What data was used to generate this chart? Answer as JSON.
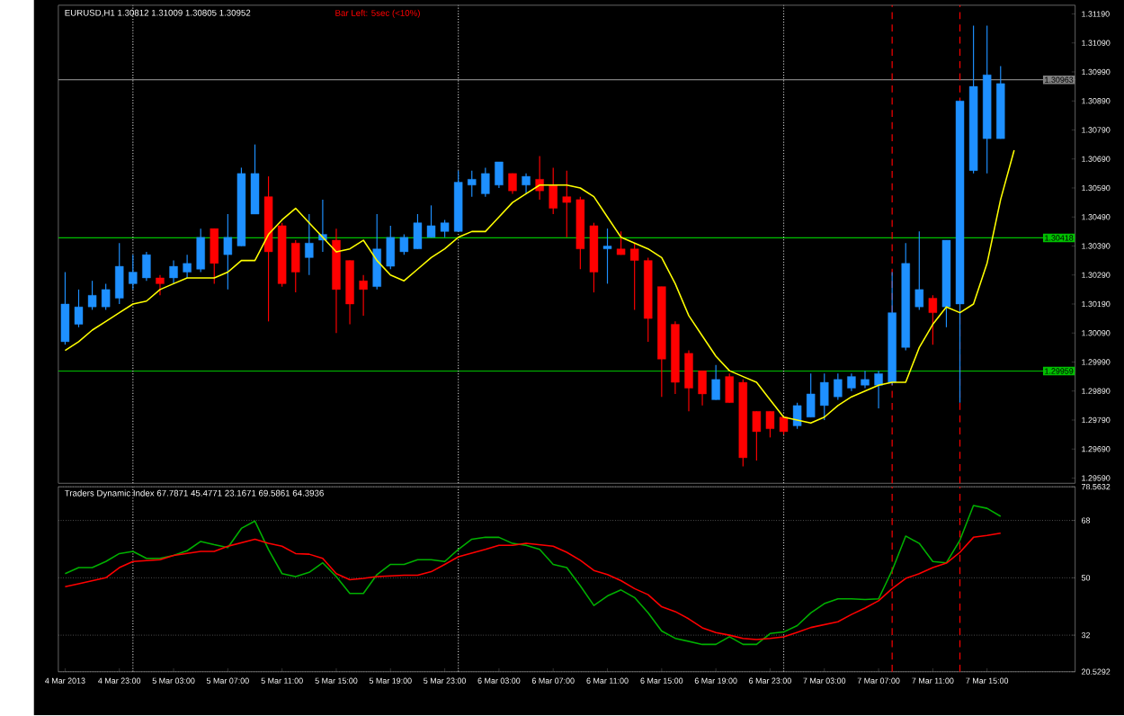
{
  "chart_data": [
    {
      "type": "candlestick",
      "title": "EURUSD,H1 1.30812 1.31009 1.30805 1.30952",
      "annotations": [
        "Bar Left: 5sec (<10%)"
      ],
      "x": [
        "2013-03-04T19:00",
        "2013-03-04T20:00",
        "2013-03-04T21:00",
        "2013-03-04T22:00",
        "2013-03-04T23:00",
        "2013-03-05T00:00",
        "2013-03-05T01:00",
        "2013-03-05T02:00",
        "2013-03-05T03:00",
        "2013-03-05T04:00",
        "2013-03-05T05:00",
        "2013-03-05T06:00",
        "2013-03-05T07:00",
        "2013-03-05T08:00",
        "2013-03-05T09:00",
        "2013-03-05T10:00",
        "2013-03-05T11:00",
        "2013-03-05T12:00",
        "2013-03-05T13:00",
        "2013-03-05T14:00",
        "2013-03-05T15:00",
        "2013-03-05T16:00",
        "2013-03-05T17:00",
        "2013-03-05T18:00",
        "2013-03-05T19:00",
        "2013-03-05T20:00",
        "2013-03-05T21:00",
        "2013-03-05T22:00",
        "2013-03-05T23:00",
        "2013-03-06T00:00",
        "2013-03-06T01:00",
        "2013-03-06T02:00",
        "2013-03-06T03:00",
        "2013-03-06T04:00",
        "2013-03-06T05:00",
        "2013-03-06T06:00",
        "2013-03-06T07:00",
        "2013-03-06T08:00",
        "2013-03-06T09:00",
        "2013-03-06T10:00",
        "2013-03-06T11:00",
        "2013-03-06T12:00",
        "2013-03-06T13:00",
        "2013-03-06T14:00",
        "2013-03-06T15:00",
        "2013-03-06T16:00",
        "2013-03-06T17:00",
        "2013-03-06T18:00",
        "2013-03-06T19:00",
        "2013-03-06T20:00",
        "2013-03-06T21:00",
        "2013-03-06T22:00",
        "2013-03-06T23:00",
        "2013-03-07T00:00",
        "2013-03-07T01:00",
        "2013-03-07T02:00",
        "2013-03-07T03:00",
        "2013-03-07T04:00",
        "2013-03-07T05:00",
        "2013-03-07T06:00",
        "2013-03-07T07:00",
        "2013-03-07T08:00",
        "2013-03-07T09:00",
        "2013-03-07T10:00",
        "2013-03-07T11:00",
        "2013-03-07T12:00",
        "2013-03-07T13:00",
        "2013-03-07T14:00",
        "2013-03-07T15:00",
        "2013-03-07T16:00"
      ],
      "ohlc": [
        [
          1.3006,
          1.303,
          1.3005,
          1.3019
        ],
        [
          1.3012,
          1.3024,
          1.3011,
          1.3018
        ],
        [
          1.3018,
          1.3027,
          1.3017,
          1.3022
        ],
        [
          1.3018,
          1.3026,
          1.3017,
          1.3024
        ],
        [
          1.3021,
          1.304,
          1.3019,
          1.3032
        ],
        [
          1.3026,
          1.3036,
          1.3024,
          1.303
        ],
        [
          1.3028,
          1.3037,
          1.3027,
          1.3036
        ],
        [
          1.3028,
          1.3029,
          1.3022,
          1.3026
        ],
        [
          1.3028,
          1.3034,
          1.3026,
          1.3032
        ],
        [
          1.303,
          1.3036,
          1.3028,
          1.3033
        ],
        [
          1.3031,
          1.3045,
          1.303,
          1.3042
        ],
        [
          1.3045,
          1.3045,
          1.3026,
          1.3033
        ],
        [
          1.3036,
          1.305,
          1.3024,
          1.3042
        ],
        [
          1.3039,
          1.3066,
          1.3039,
          1.3064
        ],
        [
          1.305,
          1.3074,
          1.305,
          1.3064
        ],
        [
          1.3056,
          1.3063,
          1.3013,
          1.3037
        ],
        [
          1.3046,
          1.3047,
          1.3025,
          1.3026
        ],
        [
          1.304,
          1.3041,
          1.3023,
          1.303
        ],
        [
          1.3035,
          1.305,
          1.3029,
          1.304
        ],
        [
          1.3041,
          1.3055,
          1.3037,
          1.3043
        ],
        [
          1.3041,
          1.3045,
          1.3009,
          1.3024
        ],
        [
          1.3034,
          1.3034,
          1.3012,
          1.3019
        ],
        [
          1.3027,
          1.3029,
          1.3015,
          1.3024
        ],
        [
          1.3025,
          1.305,
          1.3024,
          1.3038
        ],
        [
          1.3032,
          1.3046,
          1.3031,
          1.3042
        ],
        [
          1.3037,
          1.3043,
          1.3036,
          1.3042
        ],
        [
          1.3038,
          1.305,
          1.3038,
          1.3047
        ],
        [
          1.3042,
          1.3053,
          1.3042,
          1.3046
        ],
        [
          1.3044,
          1.3048,
          1.3042,
          1.3047
        ],
        [
          1.3044,
          1.3065,
          1.3044,
          1.3061
        ],
        [
          1.306,
          1.3065,
          1.3056,
          1.3062
        ],
        [
          1.3057,
          1.3066,
          1.3056,
          1.3064
        ],
        [
          1.306,
          1.3068,
          1.3059,
          1.3068
        ],
        [
          1.3064,
          1.3064,
          1.3057,
          1.3058
        ],
        [
          1.306,
          1.3064,
          1.3057,
          1.3063
        ],
        [
          1.3062,
          1.307,
          1.3055,
          1.3058
        ],
        [
          1.306,
          1.3066,
          1.305,
          1.3052
        ],
        [
          1.3056,
          1.3065,
          1.3042,
          1.3054
        ],
        [
          1.3055,
          1.3056,
          1.3031,
          1.3038
        ],
        [
          1.3046,
          1.3047,
          1.3023,
          1.303
        ],
        [
          1.3038,
          1.3045,
          1.3026,
          1.3039
        ],
        [
          1.3038,
          1.3044,
          1.3036,
          1.3036
        ],
        [
          1.3038,
          1.304,
          1.3017,
          1.3034
        ],
        [
          1.3034,
          1.3035,
          1.3006,
          1.3014
        ],
        [
          1.3025,
          1.3025,
          1.2987,
          1.3
        ],
        [
          1.3012,
          1.3013,
          1.2988,
          1.2992
        ],
        [
          1.3002,
          1.3003,
          1.2982,
          1.299
        ],
        [
          1.2996,
          1.2996,
          1.2984,
          1.2988
        ],
        [
          1.2986,
          1.2998,
          1.2986,
          1.2993
        ],
        [
          1.2994,
          1.2995,
          1.2985,
          1.2985
        ],
        [
          1.2992,
          1.2993,
          1.2963,
          1.2966
        ],
        [
          1.2982,
          1.2982,
          1.2965,
          1.2975
        ],
        [
          1.2982,
          1.2982,
          1.2973,
          1.2976
        ],
        [
          1.298,
          1.298,
          1.2974,
          1.2975
        ],
        [
          1.2977,
          1.2985,
          1.2976,
          1.2984
        ],
        [
          1.298,
          1.2995,
          1.298,
          1.2988
        ],
        [
          1.2984,
          1.2995,
          1.2979,
          1.2992
        ],
        [
          1.2987,
          1.2995,
          1.2986,
          1.2993
        ],
        [
          1.299,
          1.2995,
          1.2989,
          1.2994
        ],
        [
          1.2991,
          1.2996,
          1.299,
          1.2993
        ],
        [
          1.2991,
          1.2996,
          1.2983,
          1.2995
        ],
        [
          1.2992,
          1.303,
          1.2991,
          1.3016
        ],
        [
          1.3004,
          1.304,
          1.3003,
          1.3033
        ],
        [
          1.3018,
          1.3044,
          1.3017,
          1.3024
        ],
        [
          1.3021,
          1.3022,
          1.3005,
          1.3016
        ],
        [
          1.3018,
          1.3041,
          1.3011,
          1.3041
        ],
        [
          1.3019,
          1.3089,
          1.2985,
          1.3089
        ],
        [
          1.3065,
          1.3115,
          1.3064,
          1.3094
        ],
        [
          1.3076,
          1.3115,
          1.3064,
          1.3098
        ],
        [
          1.3076,
          1.3101,
          1.3076,
          1.3095
        ]
      ],
      "colors": [
        "#1e90ff",
        "#1e90ff",
        "#1e90ff",
        "#1e90ff",
        "#1e90ff",
        "#1e90ff",
        "#1e90ff",
        "#ff0000",
        "#1e90ff",
        "#1e90ff",
        "#1e90ff",
        "#ff0000",
        "#1e90ff",
        "#1e90ff",
        "#1e90ff",
        "#ff0000",
        "#ff0000",
        "#ff0000",
        "#1e90ff",
        "#1e90ff",
        "#ff0000",
        "#ff0000",
        "#ff0000",
        "#1e90ff",
        "#1e90ff",
        "#1e90ff",
        "#1e90ff",
        "#1e90ff",
        "#1e90ff",
        "#1e90ff",
        "#1e90ff",
        "#1e90ff",
        "#1e90ff",
        "#ff0000",
        "#1e90ff",
        "#ff0000",
        "#ff0000",
        "#ff0000",
        "#ff0000",
        "#ff0000",
        "#1e90ff",
        "#ff0000",
        "#ff0000",
        "#ff0000",
        "#ff0000",
        "#ff0000",
        "#ff0000",
        "#ff0000",
        "#1e90ff",
        "#ff0000",
        "#ff0000",
        "#ff0000",
        "#ff0000",
        "#ff0000",
        "#1e90ff",
        "#1e90ff",
        "#1e90ff",
        "#1e90ff",
        "#1e90ff",
        "#1e90ff",
        "#1e90ff",
        "#1e90ff",
        "#1e90ff",
        "#1e90ff",
        "#ff0000",
        "#1e90ff",
        "#1e90ff",
        "#1e90ff",
        "#1e90ff",
        "#1e90ff"
      ],
      "series": [
        {
          "type": "line",
          "color": "#ffff00",
          "x": [
            "2013-03-04T19:00",
            "2013-03-04T20:00",
            "2013-03-04T21:00",
            "2013-03-04T22:00",
            "2013-03-04T23:00",
            "2013-03-05T00:00",
            "2013-03-05T01:00",
            "2013-03-05T02:00",
            "2013-03-05T03:00",
            "2013-03-05T04:00",
            "2013-03-05T05:00",
            "2013-03-05T06:00",
            "2013-03-05T07:00",
            "2013-03-05T08:00",
            "2013-03-05T09:00",
            "2013-03-05T10:00",
            "2013-03-05T11:00",
            "2013-03-05T12:00",
            "2013-03-05T13:00",
            "2013-03-05T14:00",
            "2013-03-05T15:00",
            "2013-03-05T16:00",
            "2013-03-05T17:00",
            "2013-03-05T18:00",
            "2013-03-05T19:00",
            "2013-03-05T20:00",
            "2013-03-05T21:00",
            "2013-03-05T22:00",
            "2013-03-05T23:00",
            "2013-03-06T00:00",
            "2013-03-06T01:00",
            "2013-03-06T02:00",
            "2013-03-06T03:00",
            "2013-03-06T04:00",
            "2013-03-06T05:00",
            "2013-03-06T06:00",
            "2013-03-06T07:00",
            "2013-03-06T08:00",
            "2013-03-06T09:00",
            "2013-03-06T10:00",
            "2013-03-06T11:00",
            "2013-03-06T12:00",
            "2013-03-06T13:00",
            "2013-03-06T14:00",
            "2013-03-06T15:00",
            "2013-03-06T16:00",
            "2013-03-06T17:00",
            "2013-03-06T18:00",
            "2013-03-06T19:00",
            "2013-03-06T20:00",
            "2013-03-06T21:00",
            "2013-03-06T22:00",
            "2013-03-06T23:00",
            "2013-03-07T00:00",
            "2013-03-07T01:00",
            "2013-03-07T02:00",
            "2013-03-07T03:00",
            "2013-03-07T04:00",
            "2013-03-07T05:00",
            "2013-03-07T06:00",
            "2013-03-07T07:00",
            "2013-03-07T08:00",
            "2013-03-07T09:00",
            "2013-03-07T10:00",
            "2013-03-07T11:00",
            "2013-03-07T12:00",
            "2013-03-07T13:00",
            "2013-03-07T14:00",
            "2013-03-07T15:00",
            "2013-03-07T16:00",
            "2013-03-07T17:00"
          ],
          "values": [
            1.3003,
            1.3006,
            1.301,
            1.3013,
            1.3016,
            1.3019,
            1.302,
            1.3024,
            1.3026,
            1.3028,
            1.3028,
            1.3028,
            1.303,
            1.3034,
            1.3034,
            1.3043,
            1.3048,
            1.3052,
            1.3047,
            1.3042,
            1.3037,
            1.3038,
            1.3041,
            1.3034,
            1.3029,
            1.3027,
            1.3031,
            1.3035,
            1.3038,
            1.3042,
            1.3044,
            1.3044,
            1.3049,
            1.3054,
            1.3057,
            1.306,
            1.306,
            1.306,
            1.3059,
            1.3056,
            1.3049,
            1.3042,
            1.304,
            1.3038,
            1.3035,
            1.3026,
            1.3015,
            1.3008,
            1.3001,
            1.2996,
            1.2994,
            1.2992,
            1.2986,
            1.298,
            1.2979,
            1.2978,
            1.298,
            1.2984,
            1.2987,
            1.2989,
            1.2991,
            1.2992,
            1.2992,
            1.3004,
            1.3012,
            1.3018,
            1.3016,
            1.3019,
            1.3033,
            1.3055,
            1.3072
          ]
        }
      ],
      "xlim": [
        "2013-03-04T18:30",
        "2013-03-07T21:30"
      ],
      "ylim": [
        1.29572,
        1.3122
      ],
      "yticks": [
        {
          "value": 1.3119,
          "label": "1.31190"
        },
        {
          "value": 1.3109,
          "label": "1.31090"
        },
        {
          "value": 1.3099,
          "label": "1.30990"
        },
        {
          "value": 1.3089,
          "label": "1.30890"
        },
        {
          "value": 1.3079,
          "label": "1.30790"
        },
        {
          "value": 1.3069,
          "label": "1.30690"
        },
        {
          "value": 1.3059,
          "label": "1.30590"
        },
        {
          "value": 1.3049,
          "label": "1.30490"
        },
        {
          "value": 1.3039,
          "label": "1.30390"
        },
        {
          "value": 1.3029,
          "label": "1.30290"
        },
        {
          "value": 1.3019,
          "label": "1.30190"
        },
        {
          "value": 1.3009,
          "label": "1.30090"
        },
        {
          "value": 1.2999,
          "label": "1.29990"
        },
        {
          "value": 1.2989,
          "label": "1.29890"
        },
        {
          "value": 1.2979,
          "label": "1.29790"
        },
        {
          "value": 1.2969,
          "label": "1.29690"
        },
        {
          "value": 1.2959,
          "label": "1.29590"
        }
      ],
      "tick_labels": "y",
      "ref_lines": [
        {
          "axis": "y",
          "value": 1.30963,
          "label": "1.30963",
          "color": "#808080"
        },
        {
          "axis": "y",
          "value": 1.30418,
          "label": "1.30418",
          "color": "#00c000"
        },
        {
          "axis": "y",
          "value": 1.29959,
          "label": "1.29959",
          "color": "#00c000"
        },
        {
          "axis": "x",
          "value": "2013-03-05T00:00",
          "color": "#c0c0c0",
          "line_style": "dotted"
        },
        {
          "axis": "x",
          "value": "2013-03-06T00:00",
          "color": "#c0c0c0",
          "line_style": "dotted"
        },
        {
          "axis": "x",
          "value": "2013-03-07T00:00",
          "color": "#c0c0c0",
          "line_style": "dotted"
        },
        {
          "axis": "x",
          "value": "2013-03-07T08:00",
          "color": "#ff0000",
          "line_style": "dashed"
        },
        {
          "axis": "x",
          "value": "2013-03-07T13:00",
          "color": "#ff0000",
          "line_style": "dashed"
        }
      ]
    },
    {
      "type": "line",
      "title": "Traders Dynamic Index 67.7871 45.4771 23.1671 69.5861 64.3936",
      "series": [
        {
          "color": "#00b000",
          "x": [
            "2013-03-04T19:00",
            "2013-03-04T20:00",
            "2013-03-04T21:00",
            "2013-03-04T22:00",
            "2013-03-04T23:00",
            "2013-03-05T00:00",
            "2013-03-05T01:00",
            "2013-03-05T02:00",
            "2013-03-05T03:00",
            "2013-03-05T04:00",
            "2013-03-05T05:00",
            "2013-03-05T06:00",
            "2013-03-05T07:00",
            "2013-03-05T08:00",
            "2013-03-05T09:00",
            "2013-03-05T10:00",
            "2013-03-05T11:00",
            "2013-03-05T12:00",
            "2013-03-05T13:00",
            "2013-03-05T14:00",
            "2013-03-05T15:00",
            "2013-03-05T16:00",
            "2013-03-05T17:00",
            "2013-03-05T18:00",
            "2013-03-05T19:00",
            "2013-03-05T20:00",
            "2013-03-05T21:00",
            "2013-03-05T22:00",
            "2013-03-05T23:00",
            "2013-03-06T00:00",
            "2013-03-06T01:00",
            "2013-03-06T02:00",
            "2013-03-06T03:00",
            "2013-03-06T04:00",
            "2013-03-06T05:00",
            "2013-03-06T06:00",
            "2013-03-06T07:00",
            "2013-03-06T08:00",
            "2013-03-06T09:00",
            "2013-03-06T10:00",
            "2013-03-06T11:00",
            "2013-03-06T12:00",
            "2013-03-06T13:00",
            "2013-03-06T14:00",
            "2013-03-06T15:00",
            "2013-03-06T16:00",
            "2013-03-06T18:00",
            "2013-03-06T19:00",
            "2013-03-06T20:00",
            "2013-03-06T21:00",
            "2013-03-06T22:00",
            "2013-03-06T23:00",
            "2013-03-07T00:00",
            "2013-03-07T01:00",
            "2013-03-07T02:00",
            "2013-03-07T03:00",
            "2013-03-07T04:00",
            "2013-03-07T05:00",
            "2013-03-07T06:00",
            "2013-03-07T07:00",
            "2013-03-07T08:00",
            "2013-03-07T09:00",
            "2013-03-07T10:00",
            "2013-03-07T11:00",
            "2013-03-07T12:00",
            "2013-03-07T13:00",
            "2013-03-07T14:00",
            "2013-03-07T15:00",
            "2013-03-07T16:00"
          ],
          "values": [
            51.3,
            53.2,
            53.2,
            55.1,
            57.6,
            58.3,
            56.1,
            56.1,
            57.0,
            58.5,
            61.4,
            60.4,
            59.5,
            65.5,
            67.8,
            58.9,
            51.3,
            50.4,
            51.7,
            54.7,
            50.4,
            45.1,
            45.1,
            51.0,
            54.2,
            54.2,
            55.7,
            55.7,
            55.1,
            58.9,
            62.1,
            62.7,
            62.7,
            60.8,
            60.2,
            58.9,
            54.2,
            53.2,
            47.5,
            41.3,
            44.3,
            46.2,
            43.8,
            39.0,
            33.3,
            31.0,
            29.1,
            29.1,
            31.5,
            29.1,
            29.1,
            32.5,
            33.0,
            35.0,
            39.0,
            41.9,
            43.4,
            43.4,
            43.2,
            43.4,
            52.3,
            63.1,
            60.8,
            55.1,
            54.7,
            61.8,
            72.7,
            71.8,
            69.3
          ]
        },
        {
          "color": "#ff0000",
          "x": [
            "2013-03-04T19:00",
            "2013-03-04T20:00",
            "2013-03-04T22:00",
            "2013-03-04T23:00",
            "2013-03-05T00:00",
            "2013-03-05T02:00",
            "2013-03-05T03:00",
            "2013-03-05T05:00",
            "2013-03-05T06:00",
            "2013-03-05T07:00",
            "2013-03-05T09:00",
            "2013-03-05T10:00",
            "2013-03-05T11:00",
            "2013-03-05T12:00",
            "2013-03-05T13:00",
            "2013-03-05T14:00",
            "2013-03-05T15:00",
            "2013-03-05T16:00",
            "2013-03-05T17:00",
            "2013-03-05T18:00",
            "2013-03-05T20:00",
            "2013-03-05T21:00",
            "2013-03-05T22:00",
            "2013-03-05T23:00",
            "2013-03-06T00:00",
            "2013-03-06T02:00",
            "2013-03-06T03:00",
            "2013-03-06T04:00",
            "2013-03-06T05:00",
            "2013-03-06T07:00",
            "2013-03-06T08:00",
            "2013-03-06T09:00",
            "2013-03-06T10:00",
            "2013-03-06T11:00",
            "2013-03-06T12:00",
            "2013-03-06T13:00",
            "2013-03-06T14:00",
            "2013-03-06T15:00",
            "2013-03-06T16:00",
            "2013-03-06T17:00",
            "2013-03-06T18:00",
            "2013-03-06T19:00",
            "2013-03-06T20:00",
            "2013-03-06T21:00",
            "2013-03-06T22:00",
            "2013-03-06T23:00",
            "2013-03-07T00:00",
            "2013-03-07T01:00",
            "2013-03-07T02:00",
            "2013-03-07T04:00",
            "2013-03-07T05:00",
            "2013-03-07T06:00",
            "2013-03-07T07:00",
            "2013-03-07T08:00",
            "2013-03-07T09:00",
            "2013-03-07T10:00",
            "2013-03-07T11:00",
            "2013-03-07T12:00",
            "2013-03-07T13:00",
            "2013-03-07T14:00",
            "2013-03-07T15:00",
            "2013-03-07T16:00"
          ],
          "values": [
            47.2,
            48.1,
            50.0,
            53.2,
            55.1,
            55.7,
            57.0,
            58.3,
            58.3,
            59.9,
            62.1,
            60.8,
            59.9,
            57.6,
            57.4,
            56.1,
            51.3,
            49.4,
            49.8,
            50.4,
            50.8,
            50.8,
            51.9,
            54.2,
            56.6,
            58.9,
            60.2,
            60.2,
            60.8,
            59.9,
            58.0,
            55.5,
            52.3,
            51.0,
            49.1,
            46.6,
            44.7,
            40.9,
            39.4,
            37.1,
            34.3,
            32.8,
            32.0,
            31.0,
            30.6,
            31.0,
            31.5,
            32.9,
            34.4,
            36.2,
            38.5,
            40.5,
            42.8,
            46.6,
            49.8,
            51.3,
            53.2,
            54.6,
            58.0,
            62.7,
            63.3,
            64.0
          ]
        }
      ],
      "xlim": [
        "2013-03-04T18:30",
        "2013-03-07T21:30"
      ],
      "ylim": [
        20.5292,
        78.5632
      ],
      "yticks": [
        78.5632,
        68,
        50,
        32,
        20.5292
      ],
      "xticks": [
        {
          "value": "2013-03-04T19:00",
          "label": "4 Mar 2013"
        },
        {
          "value": "2013-03-04T23:00",
          "label": "4 Mar 23:00"
        },
        {
          "value": "2013-03-05T03:00",
          "label": "5 Mar 03:00"
        },
        {
          "value": "2013-03-05T07:00",
          "label": "5 Mar 07:00"
        },
        {
          "value": "2013-03-05T11:00",
          "label": "5 Mar 11:00"
        },
        {
          "value": "2013-03-05T15:00",
          "label": "5 Mar 15:00"
        },
        {
          "value": "2013-03-05T19:00",
          "label": "5 Mar 19:00"
        },
        {
          "value": "2013-03-05T23:00",
          "label": "5 Mar 23:00"
        },
        {
          "value": "2013-03-06T03:00",
          "label": "6 Mar 03:00"
        },
        {
          "value": "2013-03-06T07:00",
          "label": "6 Mar 07:00"
        },
        {
          "value": "2013-03-06T11:00",
          "label": "6 Mar 11:00"
        },
        {
          "value": "2013-03-06T15:00",
          "label": "6 Mar 15:00"
        },
        {
          "value": "2013-03-06T19:00",
          "label": "6 Mar 19:00"
        },
        {
          "value": "2013-03-06T23:00",
          "label": "6 Mar 23:00"
        },
        {
          "value": "2013-03-07T03:00",
          "label": "7 Mar 03:00"
        },
        {
          "value": "2013-03-07T07:00",
          "label": "7 Mar 07:00"
        },
        {
          "value": "2013-03-07T11:00",
          "label": "7 Mar 11:00"
        },
        {
          "value": "2013-03-07T15:00",
          "label": "7 Mar 15:00"
        }
      ],
      "grid": "y",
      "ref_lines": [
        {
          "axis": "x",
          "value": "2013-03-05T00:00",
          "color": "#c0c0c0",
          "line_style": "dotted"
        },
        {
          "axis": "x",
          "value": "2013-03-06T00:00",
          "color": "#c0c0c0",
          "line_style": "dotted"
        },
        {
          "axis": "x",
          "value": "2013-03-07T00:00",
          "color": "#c0c0c0",
          "line_style": "dotted"
        },
        {
          "axis": "x",
          "value": "2013-03-07T08:00",
          "color": "#ff0000",
          "line_style": "dashed"
        },
        {
          "axis": "x",
          "value": "2013-03-07T13:00",
          "color": "#ff0000",
          "line_style": "dashed"
        }
      ]
    }
  ]
}
